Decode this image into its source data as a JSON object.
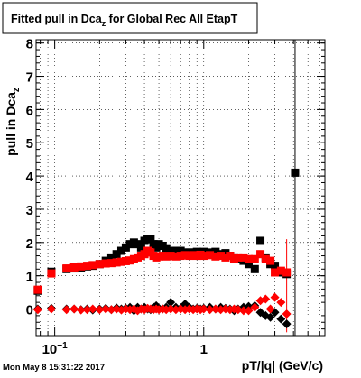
{
  "title_box": {
    "text_main": "Fitted pull in Dca",
    "text_sub": "z",
    "text_rest": " for Global Rec All EtapT"
  },
  "timestamp": "Mon May  8 15:31:22 2017",
  "chart_data": {
    "type": "scatter",
    "xlabel": "pT/|q| (GeV/c)",
    "ylabel_main": "pull in Dca",
    "ylabel_sub": "z",
    "xscale": "log",
    "xlim": [
      0.075,
      6.5
    ],
    "ylim": [
      -0.8,
      8.1
    ],
    "grid": true,
    "x_ticks": [
      {
        "value": 0.1,
        "label": "10",
        "exp": "−1"
      },
      {
        "value": 1,
        "label": "1",
        "exp": ""
      }
    ],
    "y_ticks": [
      {
        "value": 0,
        "label": "0"
      },
      {
        "value": 1,
        "label": "1"
      },
      {
        "value": 2,
        "label": "2"
      },
      {
        "value": 3,
        "label": "3"
      },
      {
        "value": 4,
        "label": "4"
      },
      {
        "value": 5,
        "label": "5"
      },
      {
        "value": 6,
        "label": "6"
      },
      {
        "value": 7,
        "label": "7"
      },
      {
        "value": 8,
        "label": "8"
      }
    ],
    "series": [
      {
        "role": "sigma",
        "color": "#000000",
        "marker": "square",
        "points": [
          [
            0.077,
            0.55
          ],
          [
            0.095,
            1.12
          ],
          [
            0.12,
            1.2
          ],
          [
            0.135,
            1.22
          ],
          [
            0.15,
            1.25
          ],
          [
            0.165,
            1.28
          ],
          [
            0.18,
            1.3
          ],
          [
            0.2,
            1.35
          ],
          [
            0.22,
            1.45
          ],
          [
            0.24,
            1.55
          ],
          [
            0.26,
            1.65
          ],
          [
            0.28,
            1.75
          ],
          [
            0.3,
            1.85
          ],
          [
            0.32,
            1.95
          ],
          [
            0.34,
            2.0
          ],
          [
            0.36,
            1.95
          ],
          [
            0.38,
            1.85
          ],
          [
            0.4,
            2.05
          ],
          [
            0.42,
            2.1
          ],
          [
            0.44,
            2.1
          ],
          [
            0.46,
            1.95
          ],
          [
            0.48,
            1.85
          ],
          [
            0.5,
            1.95
          ],
          [
            0.53,
            1.9
          ],
          [
            0.56,
            1.8
          ],
          [
            0.6,
            1.75
          ],
          [
            0.65,
            1.75
          ],
          [
            0.7,
            1.75
          ],
          [
            0.75,
            1.7
          ],
          [
            0.8,
            1.7
          ],
          [
            0.85,
            1.7
          ],
          [
            0.9,
            1.72
          ],
          [
            0.95,
            1.7
          ],
          [
            1.0,
            1.72
          ],
          [
            1.1,
            1.7
          ],
          [
            1.2,
            1.72
          ],
          [
            1.3,
            1.65
          ],
          [
            1.4,
            1.68
          ],
          [
            1.5,
            1.6
          ],
          [
            1.6,
            1.55
          ],
          [
            1.7,
            1.5
          ],
          [
            1.85,
            1.45
          ],
          [
            2.0,
            1.35
          ],
          [
            2.2,
            1.2
          ],
          [
            2.4,
            2.05
          ],
          [
            2.6,
            1.55
          ],
          [
            2.8,
            1.35
          ],
          [
            3.0,
            1.3
          ],
          [
            3.3,
            1.1
          ],
          [
            3.6,
            1.05
          ],
          [
            4.1,
            4.1
          ]
        ]
      },
      {
        "role": "sigma_red",
        "color": "#ff0000",
        "marker": "square",
        "points": [
          [
            0.077,
            0.58
          ],
          [
            0.095,
            1.07
          ],
          [
            0.12,
            1.22
          ],
          [
            0.135,
            1.25
          ],
          [
            0.15,
            1.28
          ],
          [
            0.165,
            1.3
          ],
          [
            0.18,
            1.32
          ],
          [
            0.2,
            1.35
          ],
          [
            0.22,
            1.37
          ],
          [
            0.24,
            1.38
          ],
          [
            0.26,
            1.4
          ],
          [
            0.28,
            1.42
          ],
          [
            0.3,
            1.44
          ],
          [
            0.32,
            1.46
          ],
          [
            0.34,
            1.5
          ],
          [
            0.36,
            1.55
          ],
          [
            0.38,
            1.6
          ],
          [
            0.4,
            1.65
          ],
          [
            0.42,
            1.75
          ],
          [
            0.44,
            1.7
          ],
          [
            0.46,
            1.6
          ],
          [
            0.48,
            1.55
          ],
          [
            0.5,
            1.58
          ],
          [
            0.53,
            1.6
          ],
          [
            0.56,
            1.58
          ],
          [
            0.6,
            1.6
          ],
          [
            0.65,
            1.58
          ],
          [
            0.7,
            1.6
          ],
          [
            0.75,
            1.62
          ],
          [
            0.8,
            1.6
          ],
          [
            0.85,
            1.62
          ],
          [
            0.9,
            1.6
          ],
          [
            0.95,
            1.63
          ],
          [
            1.0,
            1.6
          ],
          [
            1.1,
            1.62
          ],
          [
            1.2,
            1.58
          ],
          [
            1.3,
            1.6
          ],
          [
            1.4,
            1.55
          ],
          [
            1.5,
            1.6
          ],
          [
            1.6,
            1.52
          ],
          [
            1.7,
            1.55
          ],
          [
            1.85,
            1.55
          ],
          [
            2.0,
            1.5
          ],
          [
            2.2,
            1.5
          ],
          [
            2.4,
            1.65
          ],
          [
            2.6,
            1.5
          ],
          [
            2.8,
            1.45
          ],
          [
            3.0,
            1.1
          ],
          [
            3.3,
            1.15
          ],
          [
            3.6,
            1.1
          ]
        ]
      },
      {
        "role": "mean",
        "color": "#000000",
        "marker": "diamond",
        "points": [
          [
            0.077,
            0.0
          ],
          [
            0.095,
            0.02
          ],
          [
            0.12,
            0.0
          ],
          [
            0.135,
            0.0
          ],
          [
            0.15,
            -0.02
          ],
          [
            0.165,
            0.0
          ],
          [
            0.18,
            -0.03
          ],
          [
            0.2,
            0.0
          ],
          [
            0.22,
            0.02
          ],
          [
            0.24,
            -0.02
          ],
          [
            0.26,
            0.03
          ],
          [
            0.28,
            0.0
          ],
          [
            0.3,
            0.02
          ],
          [
            0.32,
            0.05
          ],
          [
            0.34,
            -0.05
          ],
          [
            0.36,
            0.05
          ],
          [
            0.38,
            0.0
          ],
          [
            0.4,
            0.05
          ],
          [
            0.42,
            0.0
          ],
          [
            0.44,
            -0.02
          ],
          [
            0.46,
            0.05
          ],
          [
            0.48,
            0.1
          ],
          [
            0.5,
            0.02
          ],
          [
            0.53,
            0.0
          ],
          [
            0.56,
            0.05
          ],
          [
            0.6,
            0.2
          ],
          [
            0.65,
            0.05
          ],
          [
            0.7,
            0.02
          ],
          [
            0.75,
            0.15
          ],
          [
            0.8,
            0.05
          ],
          [
            0.85,
            0.0
          ],
          [
            0.9,
            0.02
          ],
          [
            0.95,
            0.0
          ],
          [
            1.0,
            0.02
          ],
          [
            1.1,
            0.05
          ],
          [
            1.2,
            0.0
          ],
          [
            1.3,
            0.05
          ],
          [
            1.4,
            0.02
          ],
          [
            1.5,
            0.0
          ],
          [
            1.6,
            -0.05
          ],
          [
            1.7,
            0.0
          ],
          [
            1.85,
            0.05
          ],
          [
            2.0,
            0.08
          ],
          [
            2.2,
            0.1
          ],
          [
            2.4,
            -0.1
          ],
          [
            2.6,
            -0.2
          ],
          [
            2.8,
            -0.25
          ],
          [
            3.0,
            -0.1
          ],
          [
            3.3,
            -0.3
          ],
          [
            3.6,
            -0.45
          ]
        ]
      },
      {
        "role": "mean_red",
        "color": "#ff0000",
        "marker": "diamond",
        "points": [
          [
            0.077,
            -0.02
          ],
          [
            0.095,
            0.0
          ],
          [
            0.12,
            -0.02
          ],
          [
            0.135,
            0.0
          ],
          [
            0.15,
            -0.03
          ],
          [
            0.165,
            -0.02
          ],
          [
            0.18,
            0.0
          ],
          [
            0.2,
            -0.02
          ],
          [
            0.22,
            0.0
          ],
          [
            0.24,
            -0.02
          ],
          [
            0.26,
            0.0
          ],
          [
            0.28,
            -0.03
          ],
          [
            0.3,
            0.0
          ],
          [
            0.32,
            -0.02
          ],
          [
            0.34,
            0.0
          ],
          [
            0.36,
            -0.05
          ],
          [
            0.38,
            0.0
          ],
          [
            0.4,
            -0.02
          ],
          [
            0.42,
            0.02
          ],
          [
            0.44,
            0.0
          ],
          [
            0.46,
            -0.02
          ],
          [
            0.48,
            0.0
          ],
          [
            0.5,
            -0.02
          ],
          [
            0.53,
            0.0
          ],
          [
            0.56,
            -0.02
          ],
          [
            0.6,
            0.0
          ],
          [
            0.65,
            -0.02
          ],
          [
            0.7,
            0.0
          ],
          [
            0.75,
            -0.02
          ],
          [
            0.8,
            0.0
          ],
          [
            0.85,
            -0.02
          ],
          [
            0.9,
            0.0
          ],
          [
            0.95,
            -0.02
          ],
          [
            1.0,
            0.0
          ],
          [
            1.1,
            -0.02
          ],
          [
            1.2,
            0.0
          ],
          [
            1.3,
            -0.02
          ],
          [
            1.4,
            0.0
          ],
          [
            1.5,
            -0.02
          ],
          [
            1.6,
            0.0
          ],
          [
            1.7,
            -0.02
          ],
          [
            1.85,
            -0.05
          ],
          [
            2.0,
            -0.05
          ],
          [
            2.2,
            0.05
          ],
          [
            2.4,
            0.25
          ],
          [
            2.6,
            0.3
          ],
          [
            2.8,
            0.0
          ],
          [
            3.0,
            0.35
          ],
          [
            3.3,
            0.2
          ],
          [
            3.6,
            -0.15
          ]
        ]
      }
    ],
    "error_bars": [
      {
        "x": 3.3,
        "y_low": 1.0,
        "y_high": 1.25,
        "color": "#000000"
      },
      {
        "x": 3.6,
        "y_low": -0.7,
        "y_high": 2.1,
        "color": "#ff0000"
      },
      {
        "x": 4.1,
        "y_low": -0.8,
        "y_high": 8.1,
        "color": "#000000"
      }
    ]
  }
}
